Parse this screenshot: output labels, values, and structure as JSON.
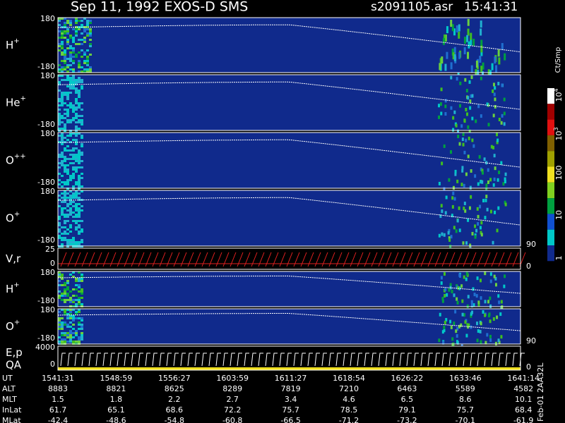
{
  "header": {
    "title": "Sep 11, 1992   EXOS-D SMS",
    "file": "s2091105.asr",
    "time": "15:41:31"
  },
  "panels": [
    {
      "label": "H",
      "sup": "+",
      "ticks": [
        "180",
        "-180"
      ]
    },
    {
      "label": "He",
      "sup": "+",
      "ticks": [
        "180",
        "-180"
      ]
    },
    {
      "label": "O",
      "sup": "++",
      "ticks": [
        "180",
        "-180"
      ]
    },
    {
      "label": "O",
      "sup": "+",
      "ticks": [
        "180",
        "-180"
      ],
      "right_ticks": [
        "90"
      ]
    },
    {
      "label": "V,r",
      "ticks": [
        "25",
        "0"
      ],
      "right_ticks": [
        "0"
      ]
    },
    {
      "label": "H",
      "sup": "+",
      "ticks": [
        "180",
        "-180"
      ]
    },
    {
      "label": "O",
      "sup": "+",
      "ticks": [
        "180",
        "-180"
      ],
      "right_ticks": [
        "90"
      ]
    },
    {
      "label": "E,p",
      "label2": "QA",
      "ticks": [
        "4000",
        "0"
      ],
      "right_ticks": [
        "0"
      ]
    }
  ],
  "colorbar": {
    "title": "Ct/Smp",
    "labels": [
      {
        "base": "10",
        "exp": "4"
      },
      {
        "base": "10",
        "exp": "3"
      },
      {
        "base": "100"
      },
      {
        "base": "10"
      },
      {
        "base": "1"
      }
    ]
  },
  "footer": {
    "rows": [
      {
        "label": "UT",
        "values": [
          "1541:31",
          "1548:59",
          "1556:27",
          "1603:59",
          "1611:27",
          "1618:54",
          "1626:22",
          "1633:46",
          "1641:14"
        ]
      },
      {
        "label": "ALT",
        "values": [
          "8883",
          "8821",
          "8625",
          "8289",
          "7819",
          "7210",
          "6463",
          "5589",
          "4582"
        ]
      },
      {
        "label": "MLT",
        "values": [
          "1.5",
          "1.8",
          "2.2",
          "2.7",
          "3.4",
          "4.6",
          "6.5",
          "8.6",
          "10.1"
        ]
      },
      {
        "label": "InLat",
        "values": [
          "61.7",
          "65.1",
          "68.6",
          "72.2",
          "75.7",
          "78.5",
          "79.1",
          "75.7",
          "68.4"
        ]
      },
      {
        "label": "MLat",
        "values": [
          "-42.4",
          "-48.6",
          "-54.8",
          "-60.8",
          "-66.5",
          "-71.2",
          "-73.2",
          "-70.1",
          "-61.9"
        ]
      }
    ]
  },
  "stamp": "Feb-01 2AA32L"
}
